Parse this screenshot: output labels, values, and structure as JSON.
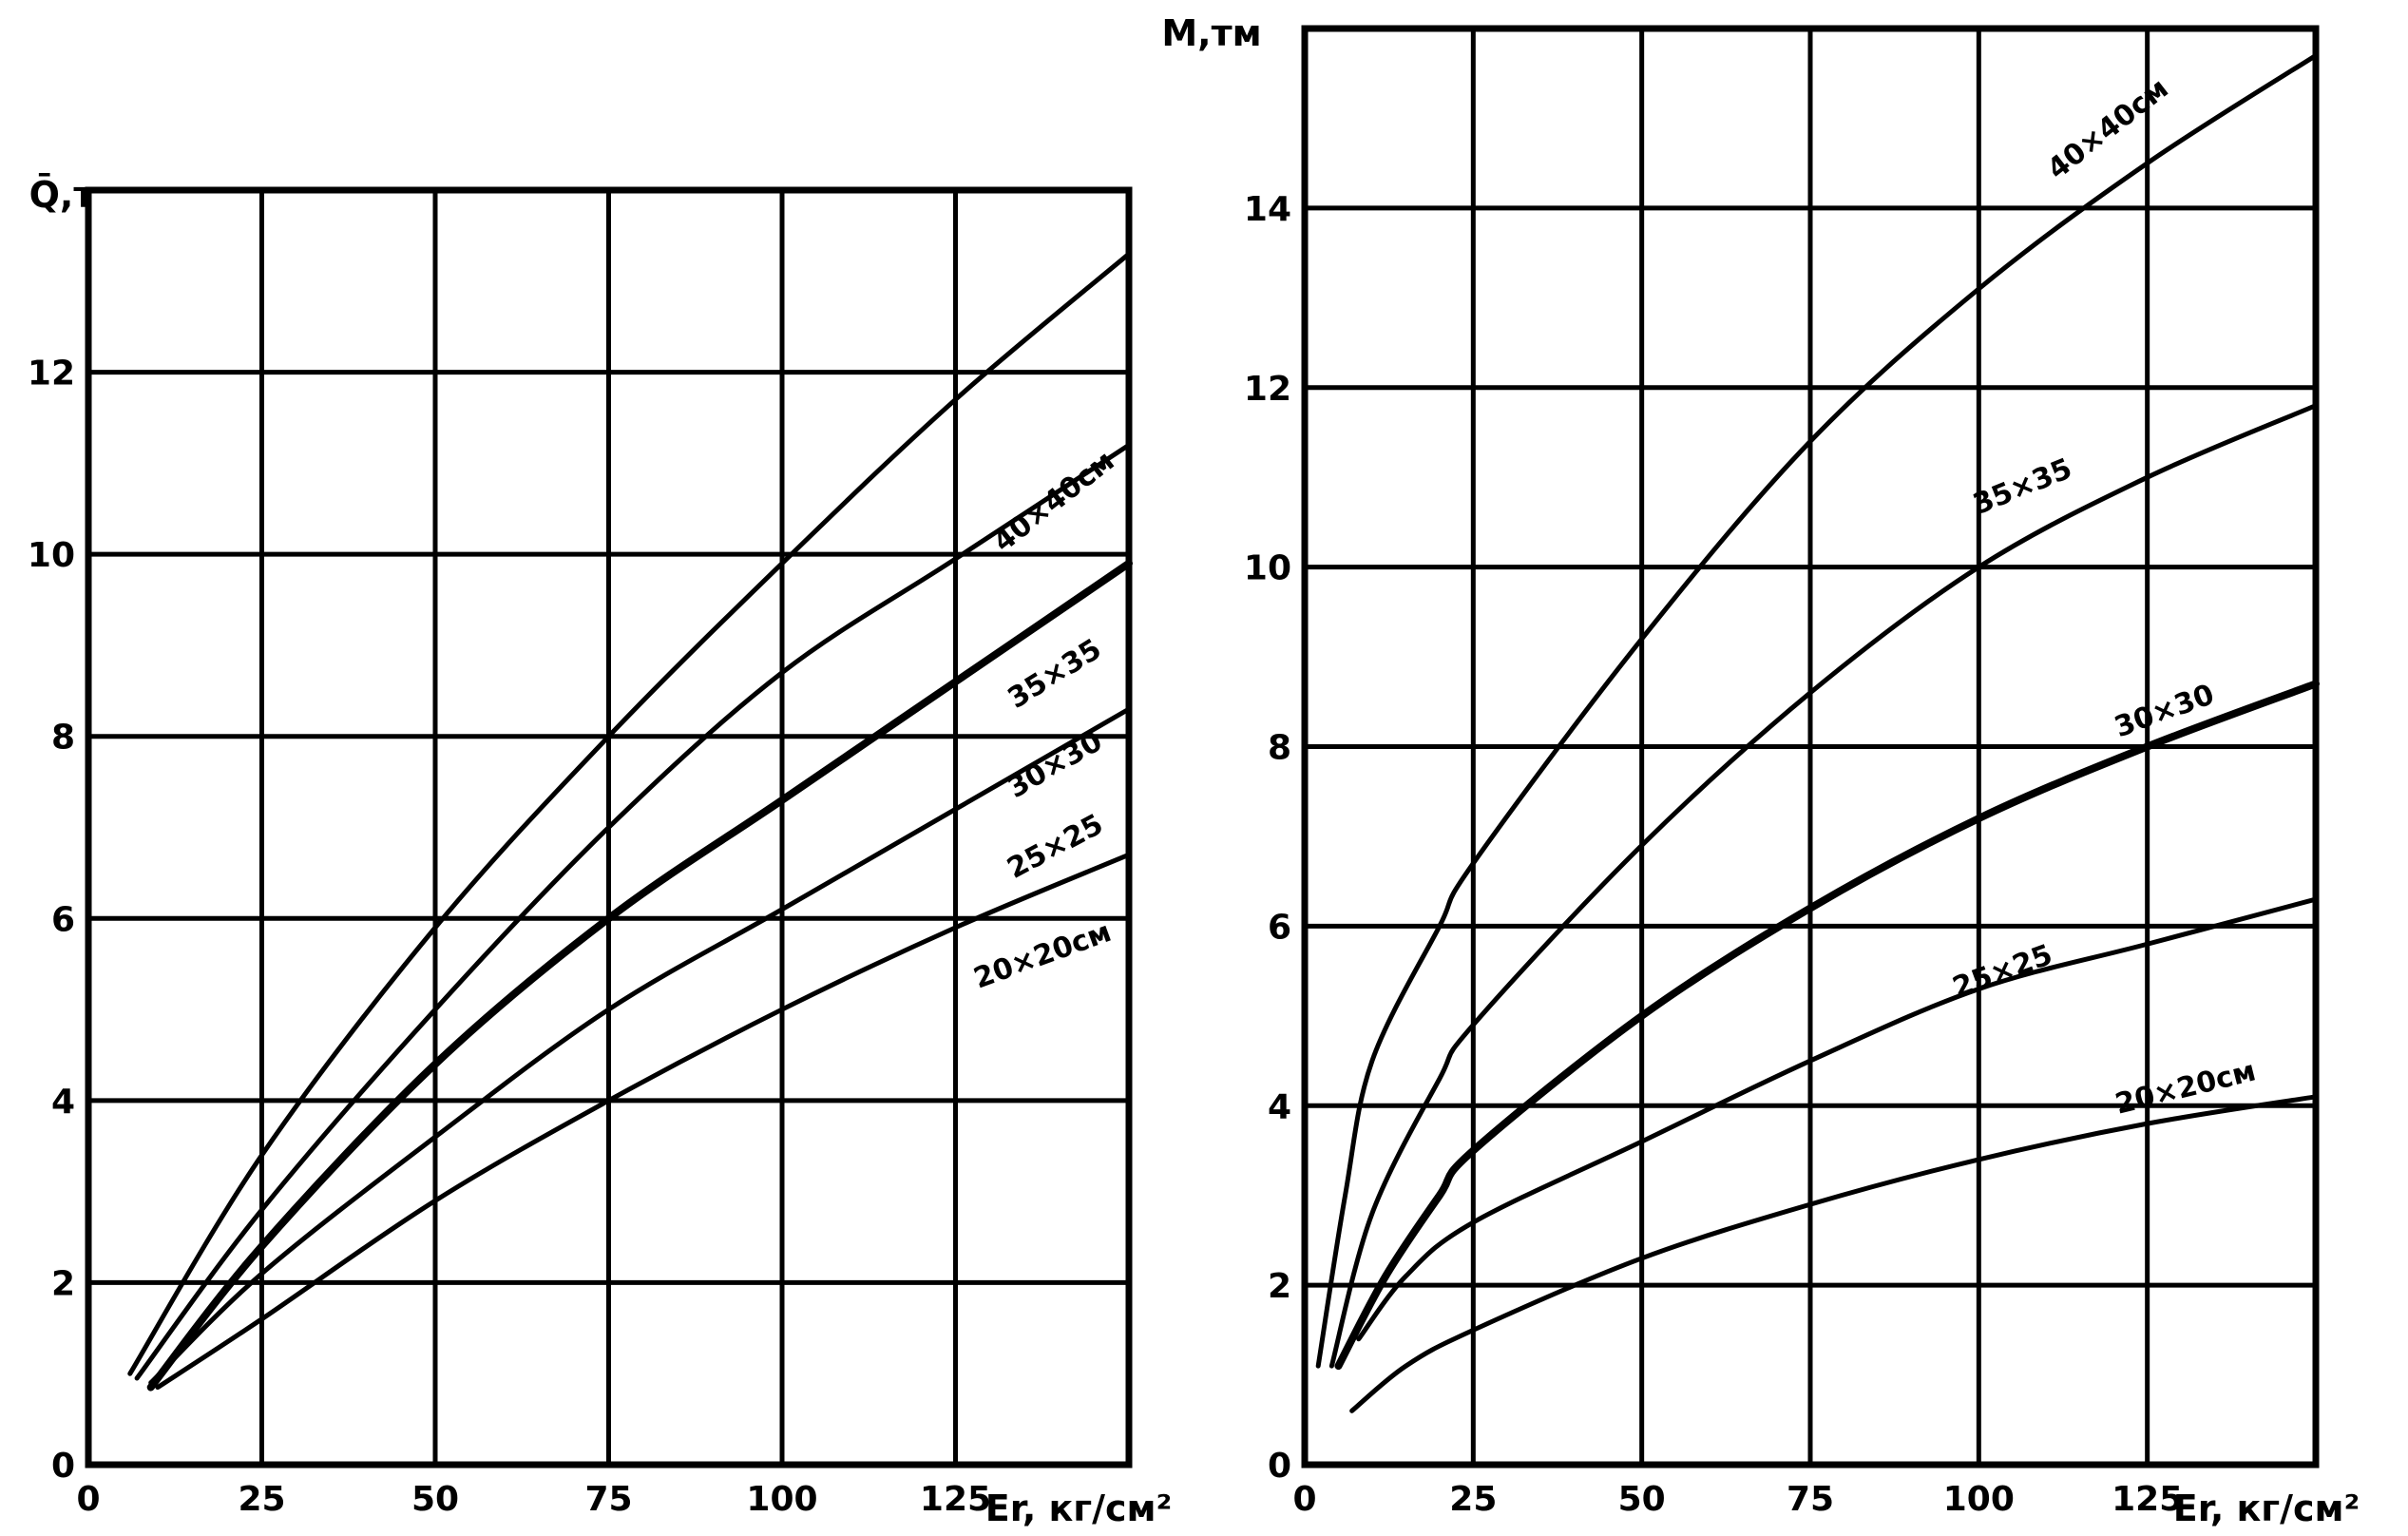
{
  "chart_data": [
    {
      "type": "line",
      "title": "",
      "xlabel": "Er, кг/см²",
      "ylabel": "Q̄,т",
      "xlim": [
        0,
        150
      ],
      "ylim": [
        0,
        14
      ],
      "x_ticks": [
        "0",
        "25",
        "50",
        "75",
        "100",
        "125"
      ],
      "y_ticks": [
        "0",
        "2",
        "4",
        "6",
        "8",
        "10",
        "12"
      ],
      "grid": true,
      "series": [
        {
          "name": "40×40см",
          "x": [
            6,
            25,
            50,
            75,
            100,
            125,
            150
          ],
          "y": [
            1.0,
            3.4,
            5.9,
            8.0,
            9.9,
            11.7,
            13.3
          ]
        },
        {
          "name": "35×35",
          "x": [
            7,
            25,
            50,
            75,
            100,
            125,
            150
          ],
          "y": [
            0.95,
            2.8,
            5.0,
            7.0,
            8.7,
            9.95,
            11.2
          ]
        },
        {
          "name": "30×30",
          "x": [
            9,
            25,
            50,
            75,
            100,
            125,
            150
          ],
          "y": [
            0.85,
            2.4,
            4.4,
            6.0,
            7.3,
            8.6,
            9.9
          ]
        },
        {
          "name": "25×25",
          "x": [
            9,
            25,
            50,
            75,
            100,
            125,
            150
          ],
          "y": [
            0.9,
            2.1,
            3.6,
            5.0,
            6.1,
            7.2,
            8.3
          ]
        },
        {
          "name": "20×20см",
          "x": [
            10,
            25,
            50,
            75,
            100,
            125,
            150
          ],
          "y": [
            0.85,
            1.6,
            2.9,
            4.0,
            5.0,
            5.9,
            6.7
          ]
        }
      ]
    },
    {
      "type": "line",
      "title": "",
      "xlabel": "Er, кг/см²",
      "ylabel": "M,тм",
      "xlim": [
        0,
        150
      ],
      "ylim": [
        0,
        16
      ],
      "x_ticks": [
        "0",
        "25",
        "50",
        "75",
        "100",
        "125"
      ],
      "y_ticks": [
        "0",
        "2",
        "4",
        "6",
        "8",
        "10",
        "12",
        "14"
      ],
      "grid": true,
      "series": [
        {
          "name": "40×40см",
          "x": [
            2,
            6,
            10,
            20,
            25,
            50,
            75,
            100,
            125,
            150
          ],
          "y": [
            1.1,
            3.0,
            4.5,
            6.0,
            6.7,
            9.2,
            11.4,
            13.1,
            14.5,
            15.7
          ]
        },
        {
          "name": "35×35",
          "x": [
            4,
            10,
            20,
            25,
            50,
            75,
            100,
            125,
            150
          ],
          "y": [
            1.1,
            2.8,
            4.3,
            4.9,
            6.9,
            8.6,
            10.0,
            11.0,
            11.8
          ]
        },
        {
          "name": "30×30",
          "x": [
            5,
            12,
            20,
            25,
            50,
            75,
            100,
            125,
            150
          ],
          "y": [
            1.1,
            2.1,
            3.0,
            3.5,
            5.0,
            6.2,
            7.2,
            8.0,
            8.7
          ]
        },
        {
          "name": "25×25",
          "x": [
            8,
            15,
            25,
            50,
            75,
            100,
            125,
            150
          ],
          "y": [
            1.4,
            2.1,
            2.7,
            3.6,
            4.5,
            5.3,
            5.8,
            6.3
          ]
        },
        {
          "name": "20×20см",
          "x": [
            7,
            15,
            25,
            50,
            75,
            100,
            125,
            150
          ],
          "y": [
            0.6,
            1.1,
            1.5,
            2.3,
            2.9,
            3.4,
            3.8,
            4.1
          ]
        }
      ]
    }
  ]
}
